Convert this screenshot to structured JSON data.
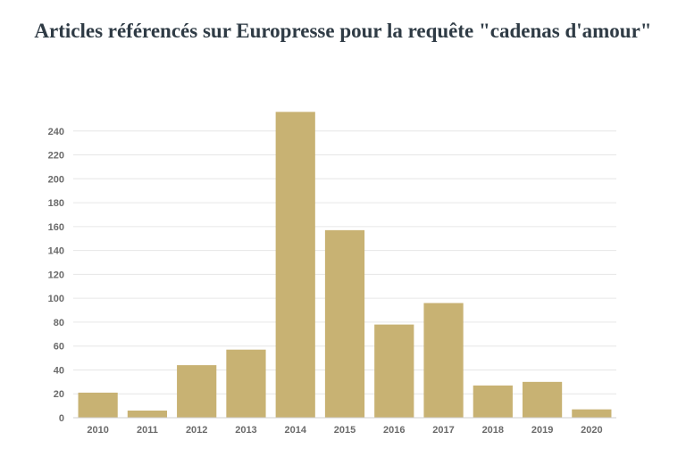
{
  "chart_data": {
    "type": "bar",
    "title": "Articles référencés sur Europresse pour la requête \"cadenas d'amour\"",
    "categories": [
      "2010",
      "2011",
      "2012",
      "2013",
      "2014",
      "2015",
      "2016",
      "2017",
      "2018",
      "2019",
      "2020"
    ],
    "values": [
      21,
      6,
      44,
      57,
      256,
      157,
      78,
      96,
      27,
      30,
      7
    ],
    "ylim": [
      0,
      260
    ],
    "yticks": [
      0,
      20,
      40,
      60,
      80,
      100,
      120,
      140,
      160,
      180,
      200,
      220,
      240
    ],
    "grid": true,
    "bar_color": "#c8b273",
    "legend": "none"
  }
}
